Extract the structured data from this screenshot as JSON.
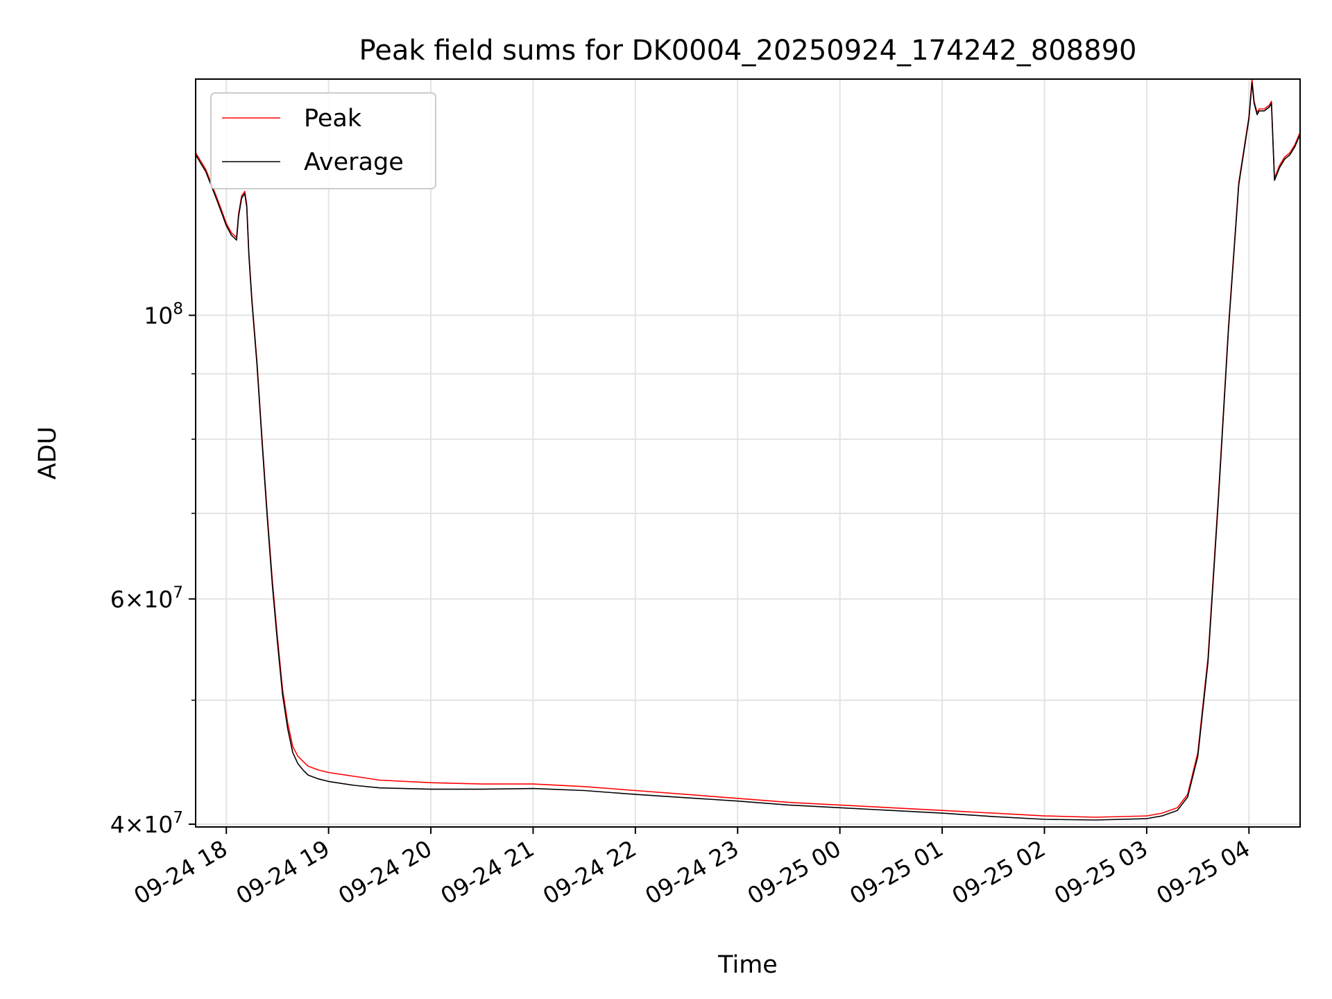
{
  "chart_data": {
    "type": "line",
    "title": "Peak field sums for DK0004_20250924_174242_808890",
    "xlabel": "Time",
    "ylabel": "ADU",
    "yscale": "log",
    "ylim": [
      39800000,
      153000000
    ],
    "x_range_hours": [
      -0.3,
      10.5
    ],
    "x_reference": "2025-09-24 18:00",
    "grid": true,
    "legend_position": "upper-left",
    "x_ticks": [
      {
        "label": "09-24 18",
        "hour": 0
      },
      {
        "label": "09-24 19",
        "hour": 1
      },
      {
        "label": "09-24 20",
        "hour": 2
      },
      {
        "label": "09-24 21",
        "hour": 3
      },
      {
        "label": "09-24 22",
        "hour": 4
      },
      {
        "label": "09-24 23",
        "hour": 5
      },
      {
        "label": "09-25 00",
        "hour": 6
      },
      {
        "label": "09-25 01",
        "hour": 7
      },
      {
        "label": "09-25 02",
        "hour": 8
      },
      {
        "label": "09-25 03",
        "hour": 9
      },
      {
        "label": "09-25 04",
        "hour": 10
      }
    ],
    "y_major_ticks": [
      {
        "value": 40000000,
        "mant": "4",
        "exp": "7"
      },
      {
        "value": 60000000,
        "mant": "6",
        "exp": "7"
      },
      {
        "value": 100000000,
        "mant": "",
        "exp": "8"
      }
    ],
    "y_minor_ticks": [
      50000000,
      70000000,
      80000000,
      90000000
    ],
    "series": [
      {
        "name": "Peak",
        "color": "#ff0000",
        "x_hours": [
          -0.3,
          -0.2,
          -0.1,
          -0.05,
          0.0,
          0.05,
          0.1,
          0.12,
          0.15,
          0.18,
          0.2,
          0.22,
          0.25,
          0.3,
          0.35,
          0.4,
          0.45,
          0.5,
          0.55,
          0.6,
          0.65,
          0.7,
          0.75,
          0.8,
          0.9,
          1.0,
          1.25,
          1.5,
          2.0,
          2.5,
          3.0,
          3.5,
          4.0,
          4.5,
          5.0,
          5.5,
          6.0,
          6.5,
          7.0,
          7.5,
          8.0,
          8.5,
          9.0,
          9.15,
          9.3,
          9.4,
          9.5,
          9.6,
          9.7,
          9.8,
          9.9,
          10.0,
          10.03,
          10.05,
          10.08,
          10.1,
          10.15,
          10.2,
          10.22,
          10.25,
          10.3,
          10.35,
          10.4,
          10.45,
          10.5
        ],
        "y_values": [
          134000000,
          130000000,
          124000000,
          121000000,
          118000000,
          116000000,
          115000000,
          120000000,
          124000000,
          125000000,
          122000000,
          112000000,
          103000000,
          92000000,
          80000000,
          70000000,
          62000000,
          56000000,
          51000000,
          48000000,
          46000000,
          45200000,
          44800000,
          44400000,
          44100000,
          43900000,
          43600000,
          43300000,
          43100000,
          43000000,
          43000000,
          42800000,
          42500000,
          42200000,
          41900000,
          41600000,
          41400000,
          41200000,
          41000000,
          40800000,
          40600000,
          40500000,
          40600000,
          40800000,
          41200000,
          42200000,
          45500000,
          54000000,
          72000000,
          98000000,
          127000000,
          143000000,
          153000000,
          147000000,
          144000000,
          145000000,
          145000000,
          146000000,
          147000000,
          128000000,
          131000000,
          133000000,
          134000000,
          136000000,
          139000000
        ]
      },
      {
        "name": "Average",
        "color": "#000000",
        "x_hours": [
          -0.3,
          -0.2,
          -0.1,
          -0.05,
          0.0,
          0.05,
          0.1,
          0.12,
          0.15,
          0.18,
          0.2,
          0.22,
          0.25,
          0.3,
          0.35,
          0.4,
          0.45,
          0.5,
          0.55,
          0.6,
          0.65,
          0.7,
          0.75,
          0.8,
          0.9,
          1.0,
          1.25,
          1.5,
          2.0,
          2.5,
          3.0,
          3.5,
          4.0,
          4.5,
          5.0,
          5.5,
          6.0,
          6.5,
          7.0,
          7.5,
          8.0,
          8.5,
          9.0,
          9.15,
          9.3,
          9.4,
          9.5,
          9.6,
          9.7,
          9.8,
          9.9,
          10.0,
          10.03,
          10.05,
          10.08,
          10.1,
          10.15,
          10.2,
          10.22,
          10.25,
          10.3,
          10.35,
          10.4,
          10.45,
          10.5
        ],
        "y_values": [
          133500000,
          129500000,
          123500000,
          120500000,
          117500000,
          115500000,
          114500000,
          119500000,
          123500000,
          124500000,
          121500000,
          111500000,
          102500000,
          91500000,
          79500000,
          69500000,
          61500000,
          55500000,
          50500000,
          47500000,
          45500000,
          44600000,
          44100000,
          43700000,
          43400000,
          43200000,
          42900000,
          42700000,
          42600000,
          42600000,
          42650000,
          42500000,
          42200000,
          41950000,
          41700000,
          41400000,
          41200000,
          41000000,
          40800000,
          40550000,
          40350000,
          40300000,
          40400000,
          40600000,
          41000000,
          42000000,
          45200000,
          53600000,
          71500000,
          97500000,
          126500000,
          142500000,
          152000000,
          146500000,
          143500000,
          144500000,
          144500000,
          145500000,
          146500000,
          127500000,
          130500000,
          132500000,
          133500000,
          135500000,
          138500000
        ]
      }
    ]
  }
}
